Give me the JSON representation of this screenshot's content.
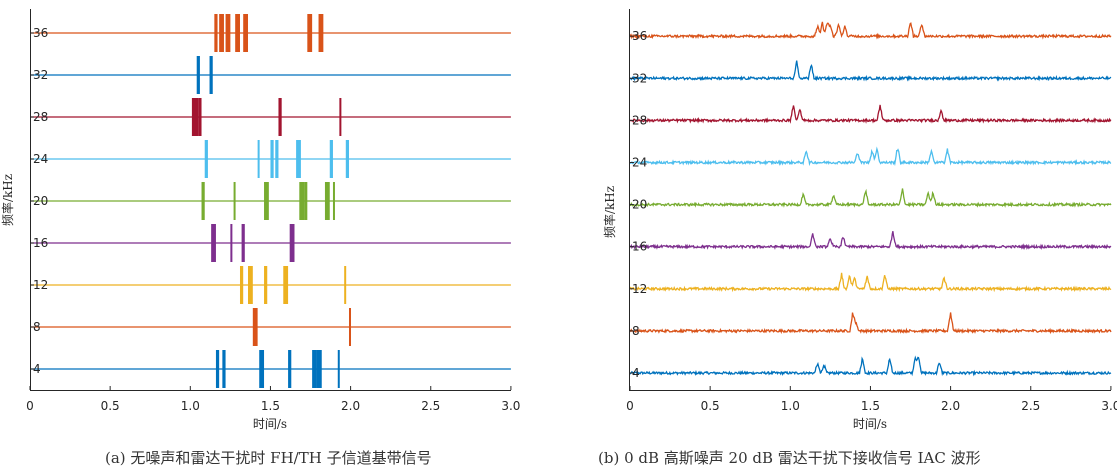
{
  "colors": {
    "blue": "#0072BD",
    "orange": "#D95319",
    "yellow": "#EDB120",
    "purple": "#7E2F8E",
    "green": "#77AC30",
    "cyan": "#4DBEEE",
    "maroon": "#A2142F"
  },
  "captions": {
    "a": "(a) 无噪声和雷达干扰时 FH/TH 子信道基带信号",
    "b": "(b) 0 dB 高斯噪声 20 dB 雷达干扰下接收信号 IAC 波形"
  },
  "chart_data": [
    {
      "type": "line",
      "id": "a",
      "title": "",
      "xlabel": "时间/s",
      "ylabel": "频率/kHz",
      "xlim": [
        0,
        3.0
      ],
      "xticks": [
        "0",
        "0.5",
        "1.0",
        "1.5",
        "2.0",
        "2.5",
        "3.0"
      ],
      "yticks": [
        "4",
        "8",
        "12",
        "16",
        "20",
        "24",
        "28",
        "32",
        "36"
      ],
      "grid": false,
      "series": [
        {
          "channel": 4,
          "color": "blue",
          "pulses": [
            [
              1.16,
              1.18
            ],
            [
              1.2,
              1.22
            ],
            [
              1.43,
              1.46
            ],
            [
              1.61,
              1.63
            ],
            [
              1.76,
              1.79
            ],
            [
              1.79,
              1.82
            ],
            [
              1.92,
              1.93
            ]
          ]
        },
        {
          "channel": 8,
          "color": "orange",
          "pulses": [
            [
              1.39,
              1.42
            ],
            [
              1.99,
              2.0
            ]
          ]
        },
        {
          "channel": 12,
          "color": "yellow",
          "pulses": [
            [
              1.31,
              1.33
            ],
            [
              1.36,
              1.39
            ],
            [
              1.46,
              1.48
            ],
            [
              1.58,
              1.61
            ],
            [
              1.96,
              1.97
            ]
          ]
        },
        {
          "channel": 16,
          "color": "purple",
          "pulses": [
            [
              1.13,
              1.16
            ],
            [
              1.25,
              1.26
            ],
            [
              1.32,
              1.34
            ],
            [
              1.62,
              1.65
            ]
          ]
        },
        {
          "channel": 20,
          "color": "green",
          "pulses": [
            [
              1.07,
              1.09
            ],
            [
              1.27,
              1.28
            ],
            [
              1.46,
              1.49
            ],
            [
              1.68,
              1.71
            ],
            [
              1.71,
              1.73
            ],
            [
              1.84,
              1.87
            ],
            [
              1.89,
              1.9
            ]
          ]
        },
        {
          "channel": 24,
          "color": "cyan",
          "pulses": [
            [
              1.09,
              1.11
            ],
            [
              1.42,
              1.43
            ],
            [
              1.5,
              1.52
            ],
            [
              1.53,
              1.55
            ],
            [
              1.66,
              1.69
            ],
            [
              1.87,
              1.89
            ],
            [
              1.97,
              1.99
            ]
          ]
        },
        {
          "channel": 28,
          "color": "maroon",
          "pulses": [
            [
              1.01,
              1.05
            ],
            [
              1.05,
              1.07
            ],
            [
              1.55,
              1.57
            ],
            [
              1.93,
              1.94
            ]
          ]
        },
        {
          "channel": 32,
          "color": "blue",
          "pulses": [
            [
              1.04,
              1.06
            ],
            [
              1.12,
              1.14
            ]
          ]
        },
        {
          "channel": 36,
          "color": "orange",
          "pulses": [
            [
              1.15,
              1.17
            ],
            [
              1.18,
              1.21
            ],
            [
              1.22,
              1.25
            ],
            [
              1.28,
              1.31
            ],
            [
              1.33,
              1.36
            ],
            [
              1.73,
              1.76
            ],
            [
              1.8,
              1.83
            ]
          ]
        }
      ]
    },
    {
      "type": "line",
      "id": "b",
      "title": "",
      "xlabel": "时间/s",
      "ylabel": "频率/kHz",
      "xlim": [
        0,
        3.0
      ],
      "xticks": [
        "0",
        "0.5",
        "1.0",
        "1.5",
        "2.0",
        "2.5",
        "3.0"
      ],
      "yticks": [
        "4",
        "8",
        "12",
        "16",
        "20",
        "24",
        "28",
        "32",
        "36"
      ],
      "grid": false,
      "series": [
        {
          "channel": 4,
          "color": "blue",
          "peaks": [
            [
              1.17,
              0.5
            ],
            [
              1.21,
              0.45
            ],
            [
              1.45,
              0.8
            ],
            [
              1.62,
              0.75
            ],
            [
              1.78,
              0.8
            ],
            [
              1.8,
              0.9
            ],
            [
              1.93,
              0.6
            ]
          ]
        },
        {
          "channel": 8,
          "color": "orange",
          "peaks": [
            [
              1.39,
              1.0
            ],
            [
              1.41,
              0.45
            ],
            [
              2.0,
              1.0
            ]
          ]
        },
        {
          "channel": 12,
          "color": "yellow",
          "peaks": [
            [
              1.32,
              0.8
            ],
            [
              1.37,
              0.75
            ],
            [
              1.4,
              0.6
            ],
            [
              1.48,
              0.7
            ],
            [
              1.59,
              0.8
            ],
            [
              1.96,
              0.6
            ]
          ]
        },
        {
          "channel": 16,
          "color": "purple",
          "peaks": [
            [
              1.14,
              0.75
            ],
            [
              1.25,
              0.45
            ],
            [
              1.33,
              0.55
            ],
            [
              1.64,
              0.85
            ]
          ]
        },
        {
          "channel": 20,
          "color": "green",
          "peaks": [
            [
              1.08,
              0.55
            ],
            [
              1.27,
              0.55
            ],
            [
              1.47,
              0.75
            ],
            [
              1.7,
              0.8
            ],
            [
              1.86,
              0.65
            ],
            [
              1.89,
              0.7
            ]
          ]
        },
        {
          "channel": 24,
          "color": "cyan",
          "peaks": [
            [
              1.1,
              0.65
            ],
            [
              1.42,
              0.55
            ],
            [
              1.51,
              0.65
            ],
            [
              1.54,
              0.75
            ],
            [
              1.67,
              0.8
            ],
            [
              1.88,
              0.6
            ],
            [
              1.98,
              0.7
            ]
          ]
        },
        {
          "channel": 28,
          "color": "maroon",
          "peaks": [
            [
              1.02,
              0.8
            ],
            [
              1.06,
              0.6
            ],
            [
              1.56,
              0.8
            ],
            [
              1.94,
              0.55
            ]
          ]
        },
        {
          "channel": 32,
          "color": "blue",
          "peaks": [
            [
              1.04,
              0.85
            ],
            [
              1.13,
              0.75
            ]
          ]
        },
        {
          "channel": 36,
          "color": "orange",
          "peaks": [
            [
              1.17,
              0.55
            ],
            [
              1.2,
              0.75
            ],
            [
              1.23,
              0.75
            ],
            [
              1.25,
              0.6
            ],
            [
              1.3,
              0.65
            ],
            [
              1.34,
              0.55
            ],
            [
              1.75,
              0.8
            ],
            [
              1.82,
              0.7
            ]
          ]
        }
      ]
    }
  ]
}
